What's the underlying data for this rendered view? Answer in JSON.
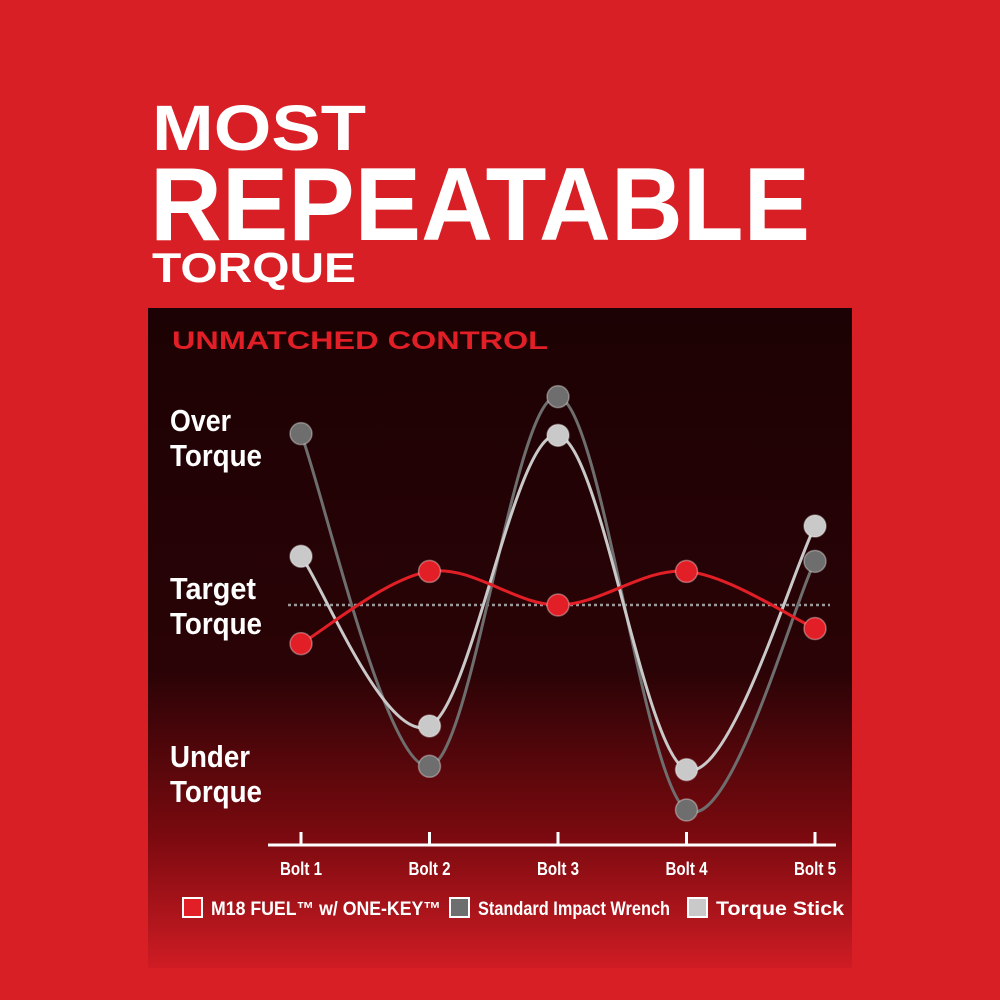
{
  "headline": {
    "line1": "MOST",
    "line2": "REPEATABLE",
    "line3": "TORQUE"
  },
  "chart_data": {
    "type": "line",
    "title": "UNMATCHED CONTROL",
    "categories": [
      "Bolt 1",
      "Bolt 2",
      "Bolt 3",
      "Bolt 4",
      "Bolt 5"
    ],
    "y_levels": [
      {
        "label_lines": [
          "Over",
          "Torque"
        ],
        "value": 1
      },
      {
        "label_lines": [
          "Target",
          "Torque"
        ],
        "value": 0
      },
      {
        "label_lines": [
          "Under",
          "Torque"
        ],
        "value": -1
      }
    ],
    "ylim": [
      -1.4,
      1.4
    ],
    "target_line": {
      "value": 0,
      "style": "dotted"
    },
    "series": [
      {
        "name": "M18 FUEL™ w/ ONE-KEY™",
        "color": "#e21f26",
        "values": [
          -0.23,
          0.2,
          0,
          0.2,
          -0.14
        ]
      },
      {
        "name": "Standard Impact Wrench",
        "color": "#6e6e6e",
        "values": [
          1.02,
          -0.96,
          1.24,
          -1.22,
          0.26
        ]
      },
      {
        "name": "Torque Stick",
        "color": "#c9c9c9",
        "values": [
          0.29,
          -0.72,
          1.01,
          -0.98,
          0.47
        ]
      }
    ],
    "legend": "bottom",
    "grid": false
  }
}
